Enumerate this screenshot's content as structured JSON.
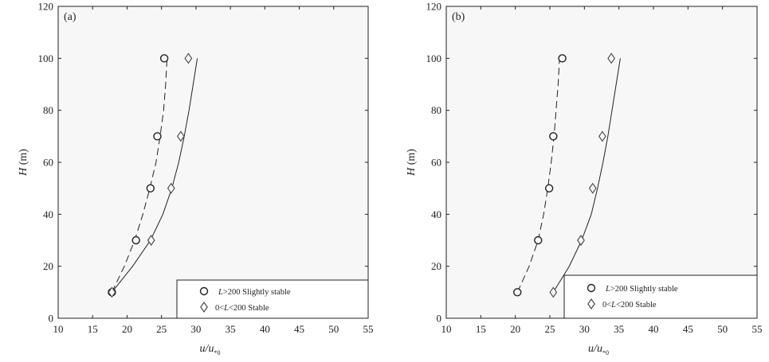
{
  "chart_data": [
    {
      "type": "scatter",
      "panel_label": "(a)",
      "xlabel": "u/u*0",
      "ylabel": "H (m)",
      "xlim": [
        10,
        55
      ],
      "ylim": [
        0,
        120
      ],
      "xticks": [
        10,
        15,
        20,
        25,
        30,
        35,
        40,
        45,
        50,
        55
      ],
      "yticks": [
        0,
        20,
        40,
        60,
        80,
        100,
        120
      ],
      "legend_position": "bottom-right",
      "series": [
        {
          "name": "L>200 Slightly stable",
          "marker": "circle",
          "points": [
            [
              17.8,
              10
            ],
            [
              21.3,
              30
            ],
            [
              23.4,
              50
            ],
            [
              24.4,
              70
            ],
            [
              25.4,
              100
            ]
          ],
          "fit": {
            "style": "dashed",
            "points": [
              [
                17.8,
                10
              ],
              [
                19.6,
                20
              ],
              [
                21.1,
                30
              ],
              [
                22.3,
                40
              ],
              [
                23.3,
                50
              ],
              [
                24.2,
                60
              ],
              [
                24.8,
                70
              ],
              [
                25.3,
                80
              ],
              [
                25.6,
                90
              ],
              [
                25.8,
                100
              ]
            ]
          }
        },
        {
          "name": "0<L<200 Stable",
          "marker": "diamond",
          "points": [
            [
              17.8,
              10
            ],
            [
              23.5,
              30
            ],
            [
              26.4,
              50
            ],
            [
              27.8,
              70
            ],
            [
              28.9,
              100
            ]
          ],
          "fit": {
            "style": "solid",
            "points": [
              [
                17.8,
                10
              ],
              [
                20.8,
                20
              ],
              [
                23.4,
                30
              ],
              [
                25.2,
                40
              ],
              [
                26.5,
                50
              ],
              [
                27.5,
                60
              ],
              [
                28.3,
                70
              ],
              [
                29.0,
                80
              ],
              [
                29.6,
                90
              ],
              [
                30.2,
                100
              ]
            ]
          }
        }
      ]
    },
    {
      "type": "scatter",
      "panel_label": "(b)",
      "xlabel": "u/u*0",
      "ylabel": "H (m)",
      "xlim": [
        10,
        55
      ],
      "ylim": [
        0,
        120
      ],
      "xticks": [
        10,
        15,
        20,
        25,
        30,
        35,
        40,
        45,
        50,
        55
      ],
      "yticks": [
        0,
        20,
        40,
        60,
        80,
        100,
        120
      ],
      "legend_position": "bottom-right",
      "series": [
        {
          "name": "L>200 Slightly stable",
          "marker": "circle",
          "points": [
            [
              20.3,
              10
            ],
            [
              23.3,
              30
            ],
            [
              24.9,
              50
            ],
            [
              25.5,
              70
            ],
            [
              26.8,
              100
            ]
          ],
          "fit": {
            "style": "dashed",
            "points": [
              [
                20.3,
                10
              ],
              [
                22.0,
                20
              ],
              [
                23.3,
                30
              ],
              [
                24.1,
                40
              ],
              [
                24.7,
                50
              ],
              [
                25.2,
                60
              ],
              [
                25.6,
                70
              ],
              [
                25.9,
                80
              ],
              [
                26.2,
                90
              ],
              [
                26.4,
                100
              ]
            ]
          }
        },
        {
          "name": "0<L<200 Stable",
          "marker": "diamond",
          "points": [
            [
              25.5,
              10
            ],
            [
              29.5,
              30
            ],
            [
              31.2,
              50
            ],
            [
              32.6,
              70
            ],
            [
              33.9,
              100
            ]
          ],
          "fit": {
            "style": "solid",
            "points": [
              [
                25.5,
                10
              ],
              [
                27.8,
                20
              ],
              [
                29.6,
                30
              ],
              [
                31.0,
                40
              ],
              [
                31.9,
                50
              ],
              [
                32.7,
                60
              ],
              [
                33.4,
                70
              ],
              [
                34.0,
                80
              ],
              [
                34.6,
                90
              ],
              [
                35.2,
                100
              ]
            ]
          }
        }
      ]
    }
  ]
}
